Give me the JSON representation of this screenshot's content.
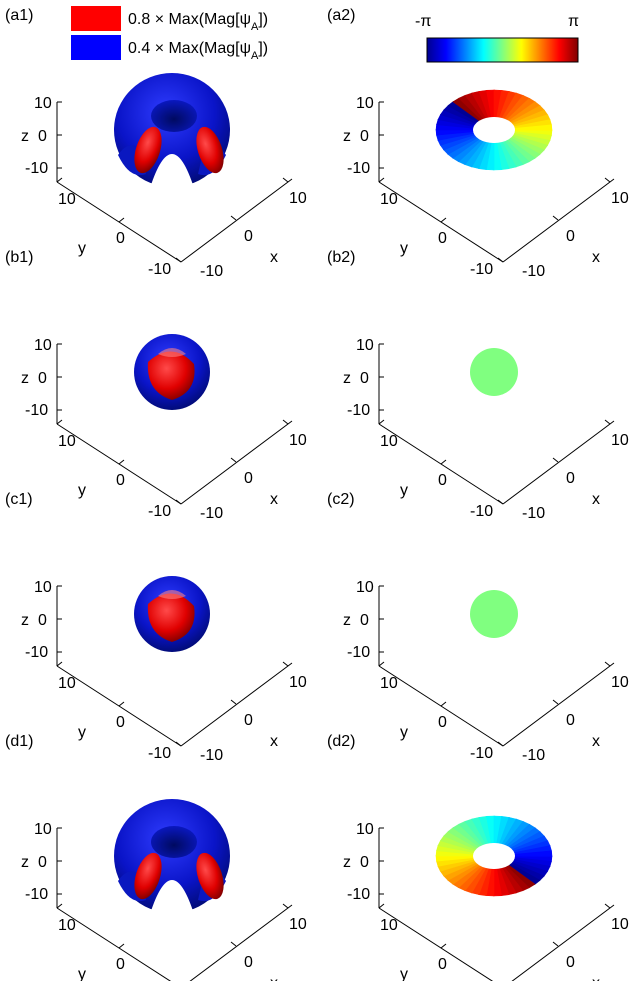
{
  "legend": {
    "items": [
      {
        "prefix": "0.8 × Max(Mag[ψ",
        "sub": "A",
        "suffix": "])",
        "color": "#ff0000"
      },
      {
        "prefix": "0.4 × Max(Mag[ψ",
        "sub": "A",
        "suffix": "])",
        "color": "#0000ff"
      }
    ]
  },
  "colorbar": {
    "min_label": "-π",
    "max_label": "π"
  },
  "axis_labels": {
    "x": "x",
    "y": "y",
    "z": "z"
  },
  "ticks": {
    "z": [
      "10",
      "0",
      "-10"
    ],
    "y": [
      "10",
      "0",
      "-10"
    ],
    "x": [
      "-10",
      "0",
      "10"
    ]
  },
  "panels": [
    {
      "label": "(a1)",
      "kind": "magnitude",
      "shape": "torus",
      "phase_rotation_deg": 0
    },
    {
      "label": "(a2)",
      "kind": "phase",
      "shape": "torus",
      "phase_rotation_deg": 0
    },
    {
      "label": "(b1)",
      "kind": "magnitude",
      "shape": "sphere",
      "phase_rotation_deg": 0
    },
    {
      "label": "(b2)",
      "kind": "phase",
      "shape": "sphere",
      "phase_rotation_deg": 0
    },
    {
      "label": "(c1)",
      "kind": "magnitude",
      "shape": "sphere",
      "phase_rotation_deg": 0
    },
    {
      "label": "(c2)",
      "kind": "phase",
      "shape": "sphere",
      "phase_rotation_deg": 0
    },
    {
      "label": "(d1)",
      "kind": "magnitude",
      "shape": "torus",
      "phase_rotation_deg": 0
    },
    {
      "label": "(d2)",
      "kind": "phase",
      "shape": "torus",
      "phase_rotation_deg": 180
    }
  ]
}
